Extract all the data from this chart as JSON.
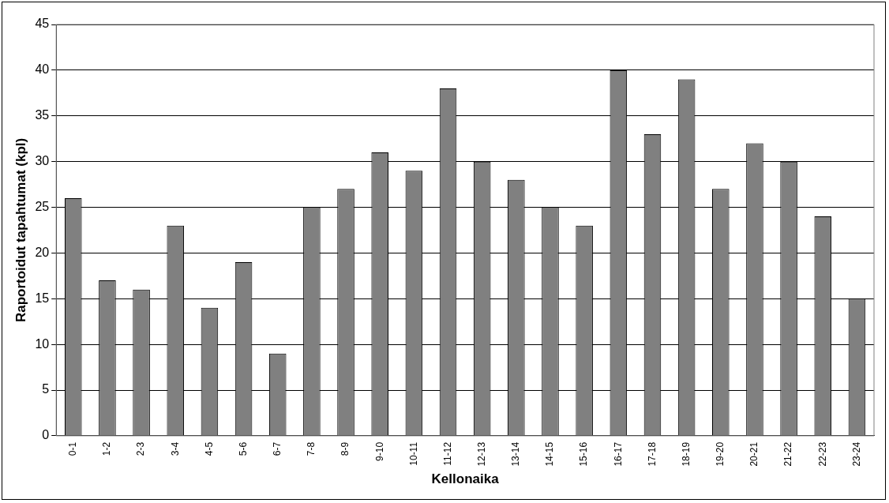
{
  "chart_data": {
    "type": "bar",
    "xlabel": "Kellonaika",
    "ylabel": "Raportoidut tapahtumat (kpl)",
    "categories": [
      "0-1",
      "1-2",
      "2-3",
      "3-4",
      "4-5",
      "5-6",
      "6-7",
      "7-8",
      "8-9",
      "9-10",
      "10-11",
      "11-12",
      "12-13",
      "13-14",
      "14-15",
      "15-16",
      "16-17",
      "17-18",
      "18-19",
      "19-20",
      "20-21",
      "21-22",
      "22-23",
      "23-24"
    ],
    "values": [
      26,
      17,
      16,
      23,
      14,
      19,
      9,
      25,
      27,
      31,
      29,
      38,
      30,
      28,
      25,
      23,
      40,
      33,
      39,
      27,
      32,
      30,
      24,
      15
    ],
    "color": "#808080",
    "ylim": [
      0,
      45
    ],
    "yticks": [
      0,
      5,
      10,
      15,
      20,
      25,
      30,
      35,
      40,
      45
    ],
    "grid": "y",
    "legend": false
  }
}
